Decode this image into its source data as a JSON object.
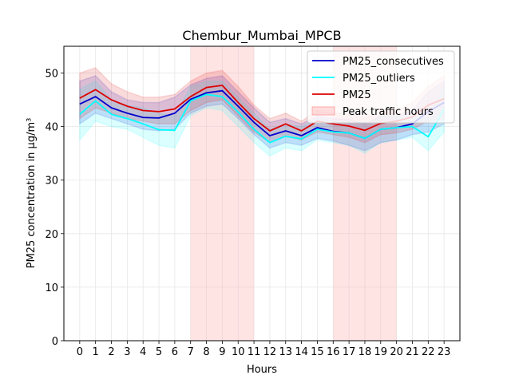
{
  "chart_data": {
    "type": "line",
    "title": "Chembur_Mumbai_MPCB",
    "xlabel": "Hours",
    "ylabel": "PM25 concentration in µg/m³",
    "xlim": [
      -1,
      24
    ],
    "ylim": [
      0,
      55
    ],
    "x": [
      0,
      1,
      2,
      3,
      4,
      5,
      6,
      7,
      8,
      9,
      10,
      11,
      12,
      13,
      14,
      15,
      16,
      17,
      18,
      19,
      20,
      21,
      22,
      23
    ],
    "yticks": [
      0,
      10,
      20,
      30,
      40,
      50
    ],
    "grid": true,
    "legend_position": "top-right",
    "series": [
      {
        "name": "PM25_consecutives",
        "color": "#0000cc",
        "values": [
          44.2,
          45.6,
          43.5,
          42.5,
          41.7,
          41.6,
          42.5,
          45.1,
          46.3,
          46.7,
          43.8,
          40.8,
          38.3,
          39.2,
          38.3,
          39.8,
          39.1,
          38.8,
          37.8,
          39.5,
          39.8,
          40.5,
          42.8,
          44.5
        ],
        "lower": [
          40.5,
          42.5,
          41.5,
          40.5,
          39.5,
          39.2,
          39.5,
          42.5,
          43.8,
          44.2,
          41.5,
          38.5,
          36.0,
          37.0,
          36.5,
          37.8,
          37.3,
          36.5,
          35.5,
          37.0,
          37.5,
          38.5,
          39.0,
          40.5
        ],
        "upper": [
          48.5,
          49.5,
          46.5,
          45.0,
          44.5,
          44.5,
          45.5,
          47.8,
          49.0,
          49.5,
          46.5,
          43.5,
          40.8,
          41.5,
          40.5,
          42.0,
          41.5,
          41.3,
          40.5,
          42.0,
          42.0,
          43.0,
          46.5,
          48.5
        ]
      },
      {
        "name": "PM25_outliers",
        "color": "#00ffff",
        "values": [
          42.3,
          44.8,
          42.3,
          41.5,
          40.5,
          39.4,
          39.3,
          44.8,
          46.0,
          45.6,
          42.7,
          39.5,
          37.0,
          38.2,
          37.7,
          39.5,
          39.0,
          38.8,
          37.8,
          39.5,
          39.8,
          40.0,
          38.1,
          43.2
        ],
        "lower": [
          37.5,
          41.0,
          40.0,
          39.5,
          38.0,
          36.5,
          36.0,
          42.0,
          43.5,
          43.0,
          40.0,
          37.0,
          34.5,
          36.0,
          35.5,
          37.5,
          37.0,
          36.5,
          35.0,
          37.0,
          37.5,
          38.0,
          35.5,
          39.0
        ],
        "upper": [
          47.0,
          48.5,
          45.0,
          44.0,
          43.5,
          42.5,
          42.0,
          47.5,
          48.5,
          48.5,
          45.5,
          42.5,
          39.5,
          40.5,
          40.0,
          41.5,
          41.0,
          41.0,
          40.5,
          42.0,
          42.0,
          42.0,
          41.5,
          47.5
        ]
      },
      {
        "name": "PM25",
        "color": "#dd0000",
        "values": [
          45.3,
          46.9,
          45.0,
          43.8,
          43.0,
          42.8,
          43.3,
          45.6,
          47.3,
          47.7,
          44.5,
          41.5,
          39.2,
          40.5,
          39.2,
          41.0,
          40.5,
          40.1,
          39.3,
          40.6,
          41.0,
          41.8,
          44.0,
          45.2
        ],
        "lower": [
          41.5,
          43.5,
          42.5,
          41.5,
          41.0,
          40.5,
          40.5,
          43.0,
          44.5,
          45.0,
          42.0,
          39.0,
          37.0,
          38.2,
          37.5,
          39.0,
          38.5,
          38.0,
          37.0,
          38.5,
          38.8,
          39.5,
          41.0,
          41.5
        ],
        "upper": [
          50.0,
          51.0,
          48.0,
          46.5,
          45.5,
          45.5,
          46.0,
          48.5,
          50.0,
          50.5,
          47.5,
          44.0,
          41.5,
          42.5,
          41.0,
          43.0,
          42.5,
          42.5,
          41.5,
          43.0,
          43.0,
          44.5,
          47.5,
          49.5
        ]
      }
    ],
    "peak_traffic": {
      "name": "Peak traffic hours",
      "color": "#ffb3b3",
      "ranges": [
        [
          7,
          11
        ],
        [
          16,
          20
        ]
      ]
    }
  }
}
